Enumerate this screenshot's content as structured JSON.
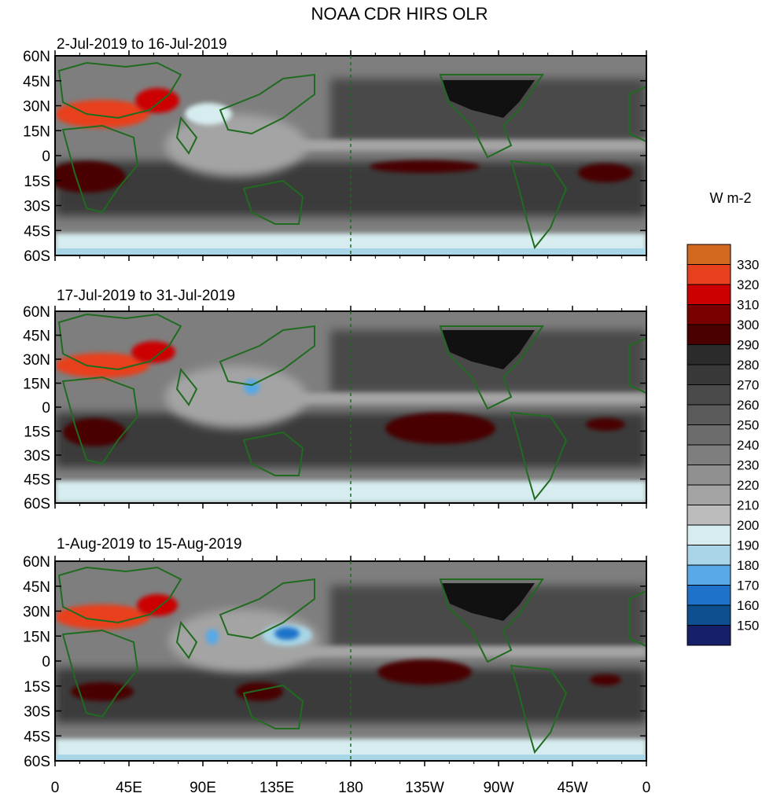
{
  "title": "NOAA CDR HIRS OLR",
  "panels": [
    {
      "label": "2-Jul-2019 to 16-Jul-2019"
    },
    {
      "label": "17-Jul-2019 to 31-Jul-2019"
    },
    {
      "label": "1-Aug-2019 to 15-Aug-2019"
    }
  ],
  "lat_labels": [
    "60N",
    "45N",
    "30N",
    "15N",
    "0",
    "15S",
    "30S",
    "45S",
    "60S"
  ],
  "lon_labels": [
    "0",
    "45E",
    "90E",
    "135E",
    "180",
    "135W",
    "90W",
    "45W",
    "0"
  ],
  "colorbar": {
    "units": "W m-2",
    "levels": [
      "330",
      "320",
      "310",
      "300",
      "290",
      "280",
      "270",
      "260",
      "250",
      "240",
      "230",
      "220",
      "210",
      "200",
      "190",
      "180",
      "170",
      "160",
      "150"
    ],
    "colors": [
      "#d2691e",
      "#e8401c",
      "#cc0000",
      "#7a0000",
      "#4a0000",
      "#2b2b2b",
      "#383838",
      "#4a4a4a",
      "#5a5a5a",
      "#6c6c6c",
      "#7e7e7e",
      "#909090",
      "#a4a4a4",
      "#bcbcbc",
      "#d6ecee",
      "#a9d6e6",
      "#57a9e8",
      "#1f72c9",
      "#0d4f8f",
      "#162069"
    ]
  },
  "colors": {
    "coastline": "#1f6b1f",
    "ocean_background": "#8a8a8a"
  }
}
